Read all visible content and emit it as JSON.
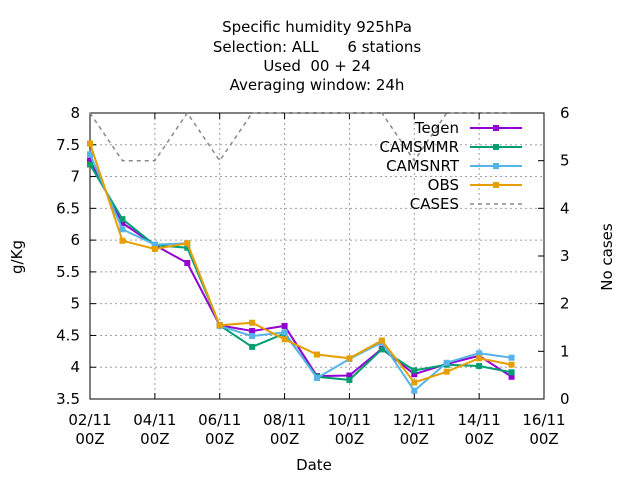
{
  "chart_data": {
    "type": "line",
    "title": [
      "Specific humidity 925hPa",
      "Selection: ALL      6 stations",
      "Used  00 + 24",
      "Averaging window: 24h"
    ],
    "xlabel": "Date",
    "ylabel": "g/Kg",
    "y2label": "No cases",
    "x_ticks": [
      {
        "value": 0,
        "line1": "02/11",
        "line2": "00Z"
      },
      {
        "value": 2,
        "line1": "04/11",
        "line2": "00Z"
      },
      {
        "value": 4,
        "line1": "06/11",
        "line2": "00Z"
      },
      {
        "value": 6,
        "line1": "08/11",
        "line2": "00Z"
      },
      {
        "value": 8,
        "line1": "10/11",
        "line2": "00Z"
      },
      {
        "value": 10,
        "line1": "12/11",
        "line2": "00Z"
      },
      {
        "value": 12,
        "line1": "14/11",
        "line2": "00Z"
      },
      {
        "value": 14,
        "line1": "16/11",
        "line2": "00Z"
      }
    ],
    "xlim": [
      0,
      14
    ],
    "ylim": [
      3.5,
      8
    ],
    "y_ticks": [
      "3.5",
      "4",
      "4.5",
      "5",
      "5.5",
      "6",
      "6.5",
      "7",
      "7.5",
      "8"
    ],
    "y2lim": [
      0,
      6
    ],
    "y2_ticks": [
      "0",
      "1",
      "2",
      "3",
      "4",
      "5",
      "6"
    ],
    "grid": true,
    "legend_position": "top-right",
    "x": [
      0,
      1,
      2,
      3,
      4,
      5,
      6,
      7,
      8,
      9,
      10,
      11,
      12,
      13
    ],
    "series": [
      {
        "name": "Tegen",
        "color": "#9400d3",
        "marker": "square",
        "axis": "y",
        "values": [
          7.25,
          6.27,
          5.92,
          5.64,
          4.66,
          4.57,
          4.65,
          3.86,
          3.87,
          4.29,
          3.89,
          4.05,
          4.18,
          3.85
        ]
      },
      {
        "name": "CAMSMMR",
        "color": "#009e73",
        "marker": "square",
        "axis": "y",
        "values": [
          7.19,
          6.33,
          5.92,
          5.88,
          4.66,
          4.32,
          4.53,
          3.85,
          3.8,
          4.28,
          3.95,
          4.04,
          4.02,
          3.92
        ]
      },
      {
        "name": "CAMSNRT",
        "color": "#56b4e9",
        "marker": "square",
        "axis": "y",
        "values": [
          7.35,
          6.17,
          5.93,
          5.95,
          4.65,
          4.49,
          4.55,
          3.83,
          4.13,
          4.39,
          3.63,
          4.07,
          4.22,
          4.15
        ]
      },
      {
        "name": "OBS",
        "color": "#e69f00",
        "marker": "square",
        "axis": "y",
        "values": [
          7.52,
          5.99,
          5.86,
          5.95,
          4.66,
          4.7,
          4.44,
          4.2,
          4.14,
          4.42,
          3.76,
          3.93,
          4.14,
          4.04
        ]
      },
      {
        "name": "CASES",
        "color": "#888888",
        "marker": "none",
        "dashed": true,
        "axis": "y2",
        "values": [
          6,
          5,
          5,
          6,
          5,
          6,
          6,
          6,
          6,
          6,
          5,
          6,
          6,
          6
        ]
      }
    ]
  }
}
